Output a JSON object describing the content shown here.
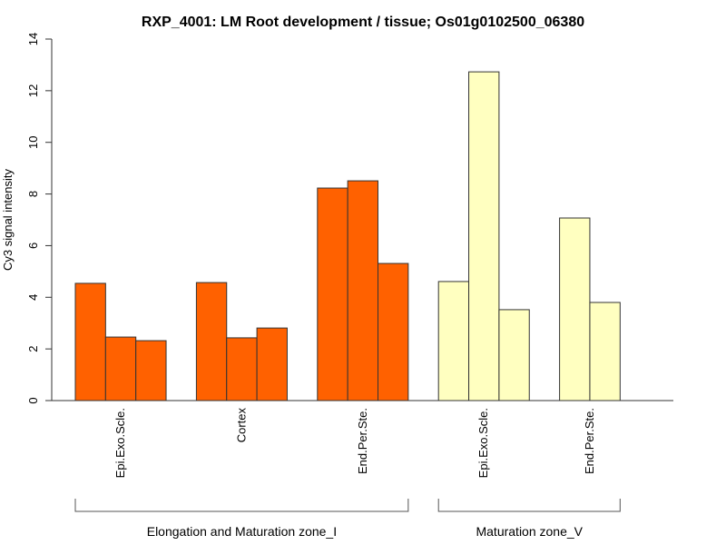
{
  "chart_data": {
    "type": "bar",
    "title": "RXP_4001: LM Root development / tissue; Os01g0102500_06380",
    "xlabel": "",
    "ylabel": "Cy3 signal intensity",
    "ylim": [
      0,
      14
    ],
    "yticks": [
      "0",
      "2",
      "4",
      "6",
      "8",
      "10",
      "12",
      "14"
    ],
    "grid": false,
    "groups": [
      {
        "name": "Elongation and Maturation zone_I",
        "color": "#ff6100",
        "categories": [
          {
            "label": "Epi.Exo.Scle.",
            "values": [
              4.54,
              2.46,
              2.32
            ]
          },
          {
            "label": "Cortex",
            "values": [
              4.57,
              2.43,
              2.81
            ]
          },
          {
            "label": "End.Per.Ste.",
            "values": [
              8.23,
              8.51,
              5.31
            ]
          }
        ]
      },
      {
        "name": "Maturation zone_V",
        "color": "#ffffc0",
        "categories": [
          {
            "label": "Epi.Exo.Scle.",
            "values": [
              4.61,
              12.73,
              3.52
            ]
          },
          {
            "label": "End.Per.Ste.",
            "values": [
              7.07,
              3.8
            ]
          }
        ]
      }
    ]
  }
}
